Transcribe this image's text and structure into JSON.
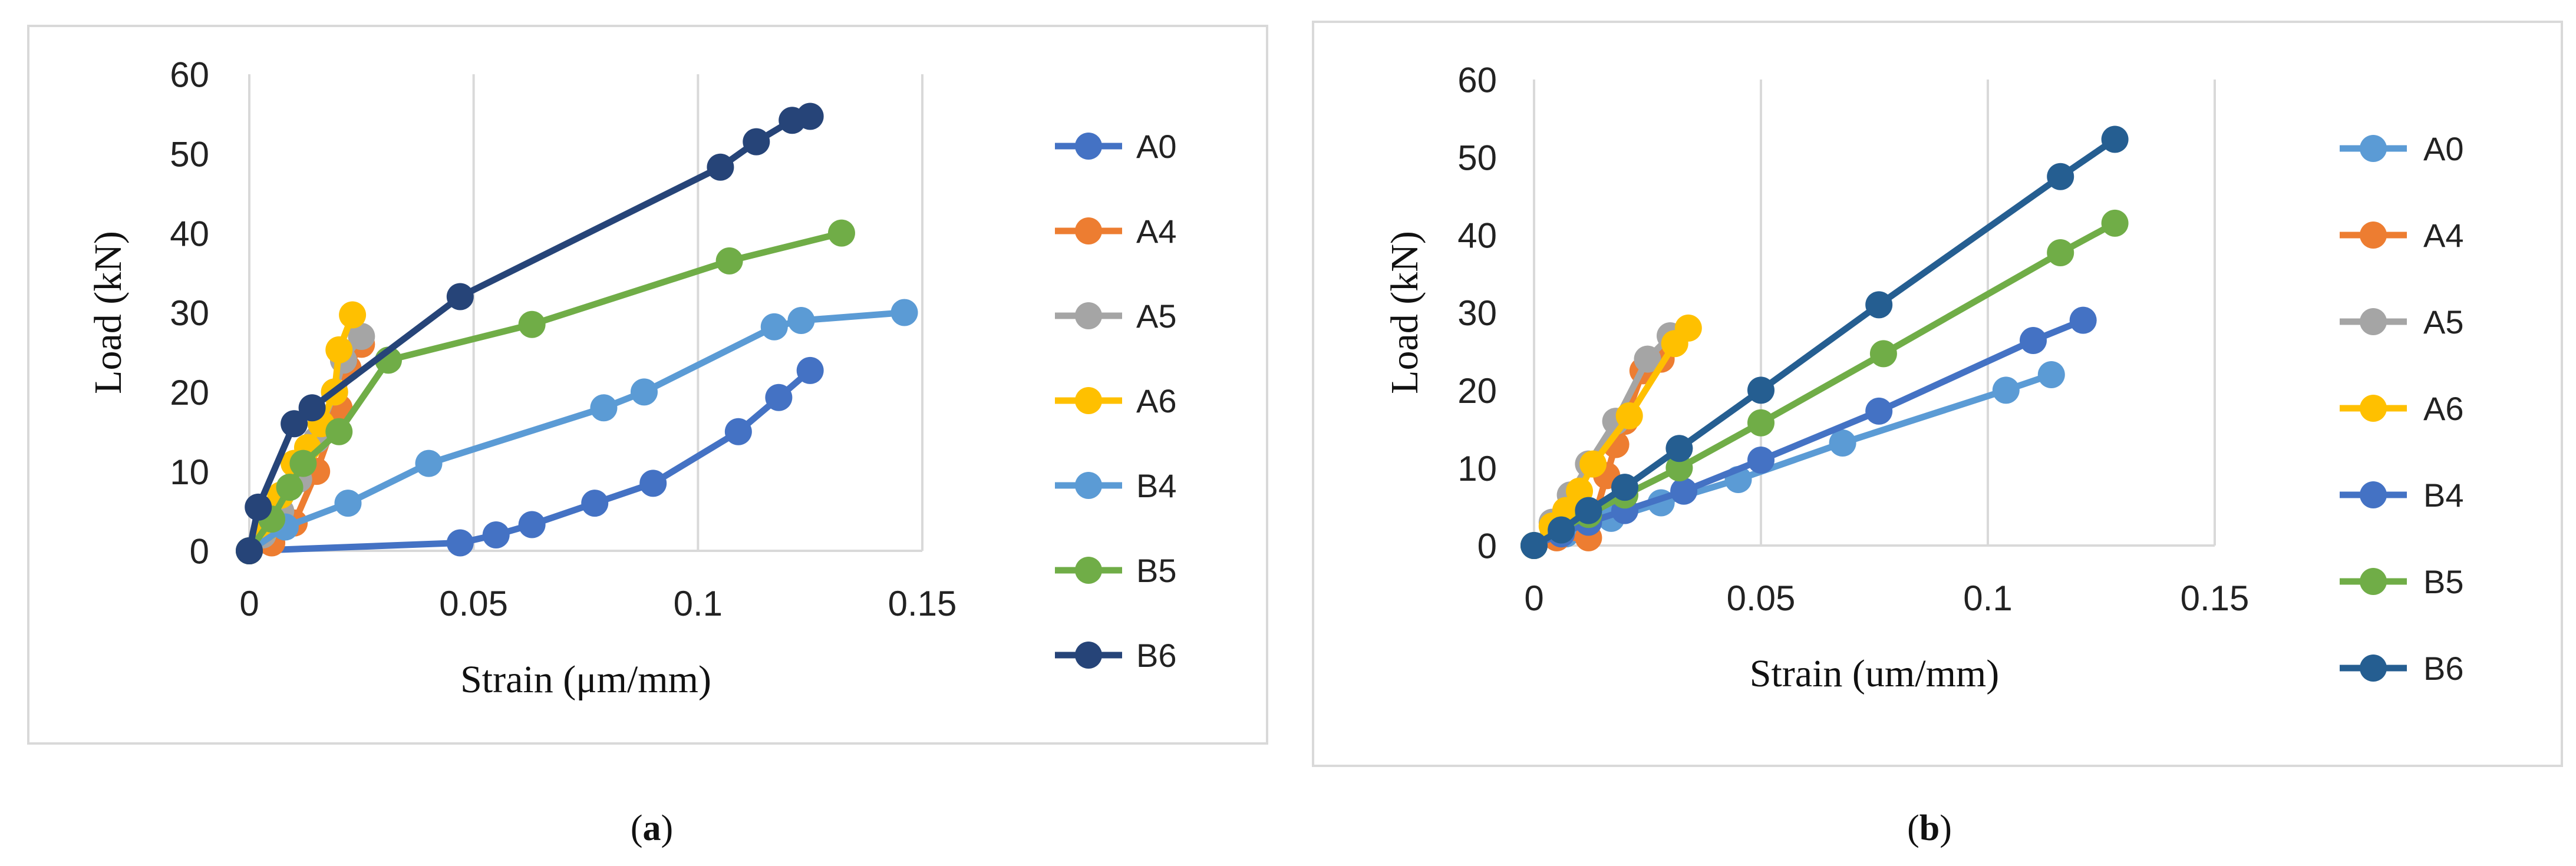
{
  "chart_data": [
    {
      "panel_label": "(a)",
      "panel_letter": "a",
      "type": "line",
      "title": "",
      "xlabel": "Strain (μm/mm)",
      "ylabel": "Load (kN)",
      "xlim": [
        0,
        0.15
      ],
      "ylim": [
        0,
        60
      ],
      "xticks": [
        "0",
        "0.05",
        "0.1",
        "0.15"
      ],
      "yticks": [
        "0",
        "10",
        "20",
        "30",
        "40",
        "50",
        "60"
      ],
      "grid": "vertical",
      "legend": "right",
      "series": [
        {
          "name": "A0",
          "color": "#4472C4",
          "points": [
            [
              0,
              0
            ],
            [
              0.047,
              1
            ],
            [
              0.055,
              2
            ],
            [
              0.063,
              3.3
            ],
            [
              0.077,
              6
            ],
            [
              0.09,
              8.5
            ],
            [
              0.109,
              15
            ],
            [
              0.118,
              19.3
            ],
            [
              0.125,
              22.7
            ]
          ]
        },
        {
          "name": "A4",
          "color": "#ED7D31",
          "points": [
            [
              0,
              0
            ],
            [
              0.005,
              1
            ],
            [
              0.01,
              3.5
            ],
            [
              0.015,
              10
            ],
            [
              0.02,
              18
            ],
            [
              0.022,
              23
            ],
            [
              0.025,
              26
            ]
          ]
        },
        {
          "name": "A5",
          "color": "#A5A5A5",
          "points": [
            [
              0,
              0
            ],
            [
              0.003,
              2
            ],
            [
              0.007,
              5
            ],
            [
              0.011,
              9
            ],
            [
              0.015,
              14
            ],
            [
              0.019,
              20
            ],
            [
              0.021,
              24
            ],
            [
              0.025,
              27
            ]
          ]
        },
        {
          "name": "A6",
          "color": "#FFC000",
          "points": [
            [
              0,
              0
            ],
            [
              0.004,
              3
            ],
            [
              0.007,
              7
            ],
            [
              0.01,
              11
            ],
            [
              0.013,
              13
            ],
            [
              0.016,
              16
            ],
            [
              0.019,
              20
            ],
            [
              0.02,
              25.3
            ],
            [
              0.023,
              29.7
            ]
          ]
        },
        {
          "name": "B4",
          "color": "#5B9BD5",
          "points": [
            [
              0,
              0
            ],
            [
              0.008,
              3
            ],
            [
              0.022,
              6
            ],
            [
              0.04,
              11
            ],
            [
              0.079,
              18
            ],
            [
              0.088,
              20
            ],
            [
              0.117,
              28.2
            ],
            [
              0.123,
              29
            ],
            [
              0.146,
              30
            ]
          ]
        },
        {
          "name": "B5",
          "color": "#70AD47",
          "points": [
            [
              0,
              0
            ],
            [
              0.005,
              4
            ],
            [
              0.009,
              8
            ],
            [
              0.012,
              11
            ],
            [
              0.02,
              15
            ],
            [
              0.031,
              24
            ],
            [
              0.063,
              28.5
            ],
            [
              0.107,
              36.5
            ],
            [
              0.132,
              40
            ]
          ]
        },
        {
          "name": "B6",
          "color": "#264478",
          "points": [
            [
              0,
              0
            ],
            [
              0.002,
              5.5
            ],
            [
              0.01,
              16
            ],
            [
              0.014,
              18
            ],
            [
              0.047,
              32
            ],
            [
              0.105,
              48.3
            ],
            [
              0.113,
              51.5
            ],
            [
              0.121,
              54.2
            ],
            [
              0.125,
              54.7
            ]
          ]
        }
      ]
    },
    {
      "panel_label": "(b)",
      "panel_letter": "b",
      "type": "line",
      "title": "",
      "xlabel": "Strain (um/mm)",
      "ylabel": "Load (kN)",
      "xlim": [
        0,
        0.15
      ],
      "ylim": [
        0,
        60
      ],
      "xticks": [
        "0",
        "0.05",
        "0.1",
        "0.15"
      ],
      "yticks": [
        "0",
        "10",
        "20",
        "30",
        "40",
        "50",
        "60"
      ],
      "grid": "vertical",
      "legend": "right",
      "series": [
        {
          "name": "A0",
          "color": "#5B9BD5",
          "points": [
            [
              0,
              0
            ],
            [
              0.007,
              1.5
            ],
            [
              0.017,
              3.5
            ],
            [
              0.028,
              5.5
            ],
            [
              0.045,
              8.5
            ],
            [
              0.068,
              13.2
            ],
            [
              0.104,
              20
            ],
            [
              0.114,
              22
            ]
          ]
        },
        {
          "name": "A4",
          "color": "#ED7D31",
          "points": [
            [
              0,
              0
            ],
            [
              0.005,
              1
            ],
            [
              0.012,
              1
            ],
            [
              0.016,
              9
            ],
            [
              0.018,
              13
            ],
            [
              0.02,
              16
            ],
            [
              0.024,
              22.5
            ],
            [
              0.028,
              24
            ]
          ]
        },
        {
          "name": "A5",
          "color": "#A5A5A5",
          "points": [
            [
              0,
              0
            ],
            [
              0.004,
              3
            ],
            [
              0.008,
              6.5
            ],
            [
              0.012,
              10.5
            ],
            [
              0.018,
              16
            ],
            [
              0.025,
              24
            ],
            [
              0.03,
              27
            ]
          ]
        },
        {
          "name": "A6",
          "color": "#FFC000",
          "points": [
            [
              0,
              0
            ],
            [
              0.004,
              2.5
            ],
            [
              0.007,
              4.5
            ],
            [
              0.01,
              7
            ],
            [
              0.013,
              10.5
            ],
            [
              0.021,
              16.7
            ],
            [
              0.031,
              26
            ],
            [
              0.034,
              28
            ]
          ]
        },
        {
          "name": "B4",
          "color": "#4472C4",
          "points": [
            [
              0,
              0
            ],
            [
              0.006,
              1.5
            ],
            [
              0.012,
              3
            ],
            [
              0.02,
              4.5
            ],
            [
              0.033,
              7
            ],
            [
              0.05,
              11
            ],
            [
              0.076,
              17.3
            ],
            [
              0.11,
              26.4
            ],
            [
              0.121,
              29
            ]
          ]
        },
        {
          "name": "B5",
          "color": "#70AD47",
          "points": [
            [
              0,
              0
            ],
            [
              0.006,
              2
            ],
            [
              0.012,
              4
            ],
            [
              0.02,
              6.5
            ],
            [
              0.032,
              10
            ],
            [
              0.05,
              15.8
            ],
            [
              0.077,
              24.7
            ],
            [
              0.116,
              37.7
            ],
            [
              0.128,
              41.5
            ]
          ]
        },
        {
          "name": "B6",
          "color": "#255E91",
          "points": [
            [
              0,
              0
            ],
            [
              0.006,
              2
            ],
            [
              0.012,
              4.5
            ],
            [
              0.02,
              7.5
            ],
            [
              0.032,
              12.5
            ],
            [
              0.05,
              20
            ],
            [
              0.076,
              31
            ],
            [
              0.116,
              47.5
            ],
            [
              0.128,
              52.3
            ]
          ]
        }
      ]
    }
  ]
}
